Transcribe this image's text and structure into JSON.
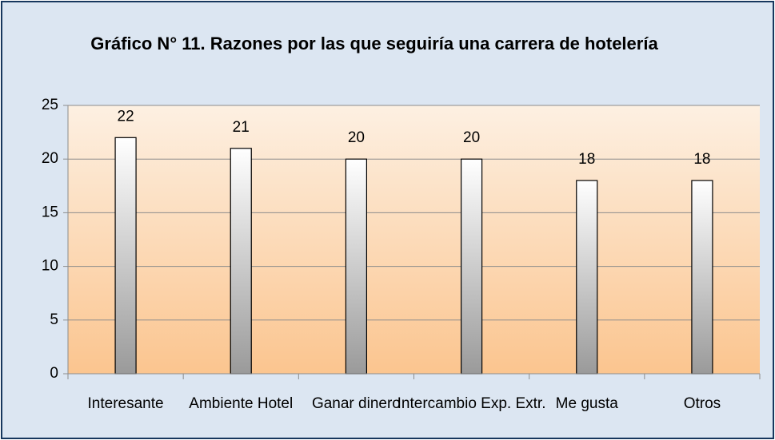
{
  "chart_data": {
    "type": "bar",
    "title": "Gráfico  N° 11. Razones por las que seguiría una carrera de hotelería",
    "categories": [
      "Interesante",
      "Ambiente Hotel",
      "Ganar dinero",
      "Intercambio Exp. Extr.",
      "Me gusta",
      "Otros"
    ],
    "values": [
      22,
      21,
      20,
      20,
      18,
      18
    ],
    "ylim": [
      0,
      25
    ],
    "yticks": [
      0,
      5,
      10,
      15,
      20,
      25
    ],
    "grid": true
  }
}
